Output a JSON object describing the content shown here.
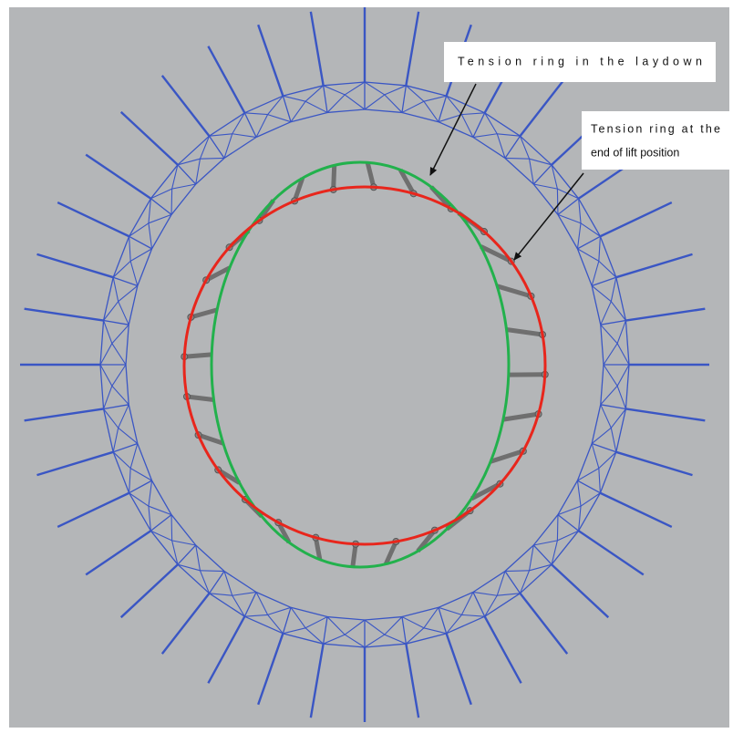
{
  "annotations": [
    {
      "lines": [
        "Tension ring in the laydown"
      ]
    },
    {
      "lines": [
        "Tension ring at the",
        "end of lift position"
      ]
    }
  ]
}
